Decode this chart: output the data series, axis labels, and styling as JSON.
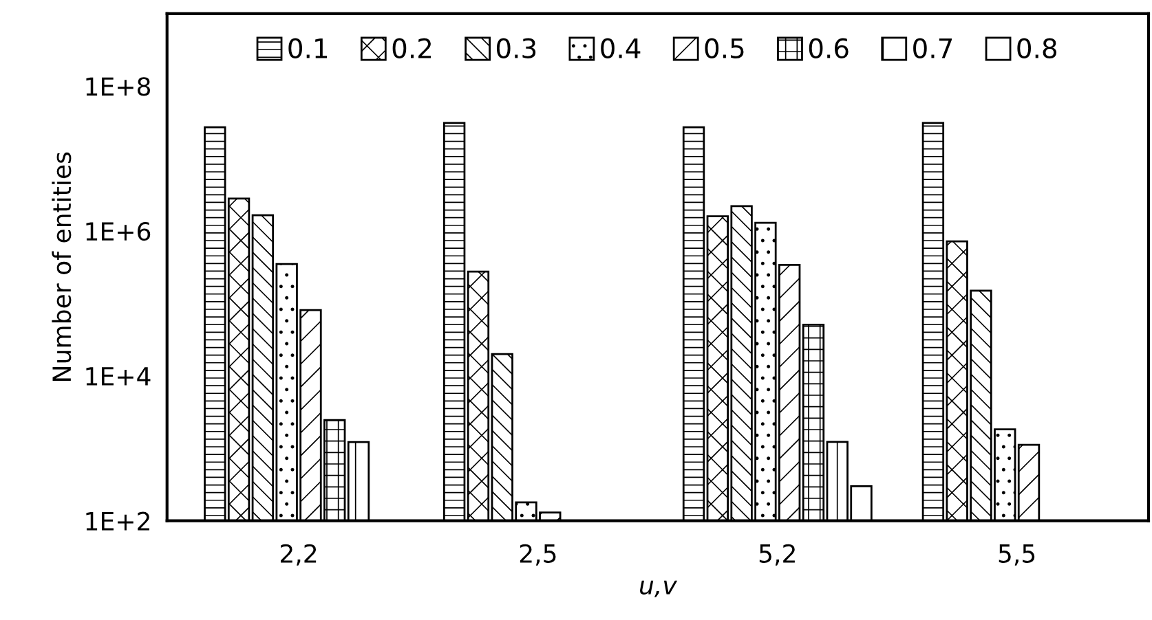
{
  "chart_data": {
    "type": "bar",
    "xlabel": "u,v",
    "ylabel": "Number of entities",
    "categories": [
      "2,2",
      "2,5",
      "5,2",
      "5,5"
    ],
    "series": [
      {
        "name": "0.1",
        "color": "#000000",
        "values": [
          27000000,
          31000000,
          27000000,
          31000000
        ]
      },
      {
        "name": "0.2",
        "color": "#000000",
        "values": [
          2800000,
          275000,
          1600000,
          720000
        ]
      },
      {
        "name": "0.3",
        "color": "#000000",
        "values": [
          1650000,
          20000,
          2200000,
          150000
        ]
      },
      {
        "name": "0.4",
        "color": "#000000",
        "values": [
          350000,
          180,
          1300000,
          1830
        ]
      },
      {
        "name": "0.5",
        "color": "#000000",
        "values": [
          81000,
          130,
          340000,
          1120
        ]
      },
      {
        "name": "0.6",
        "color": "#000000",
        "values": [
          2450,
          null,
          51000,
          null
        ]
      },
      {
        "name": "0.7",
        "color": "#000000",
        "values": [
          1220,
          null,
          1230,
          null
        ]
      },
      {
        "name": "0.8",
        "color": "#ffffff",
        "values": [
          null,
          null,
          300,
          null
        ]
      }
    ],
    "log": "y",
    "ylim": [
      100,
      1000000000
    ],
    "yticks": [
      {
        "value": 100,
        "label": "1E+2"
      },
      {
        "value": 10000,
        "label": "1E+4"
      },
      {
        "value": 1000000,
        "label": "1E+6"
      },
      {
        "value": 100000000,
        "label": "1E+8"
      }
    ],
    "legend": "top",
    "grid": false
  }
}
